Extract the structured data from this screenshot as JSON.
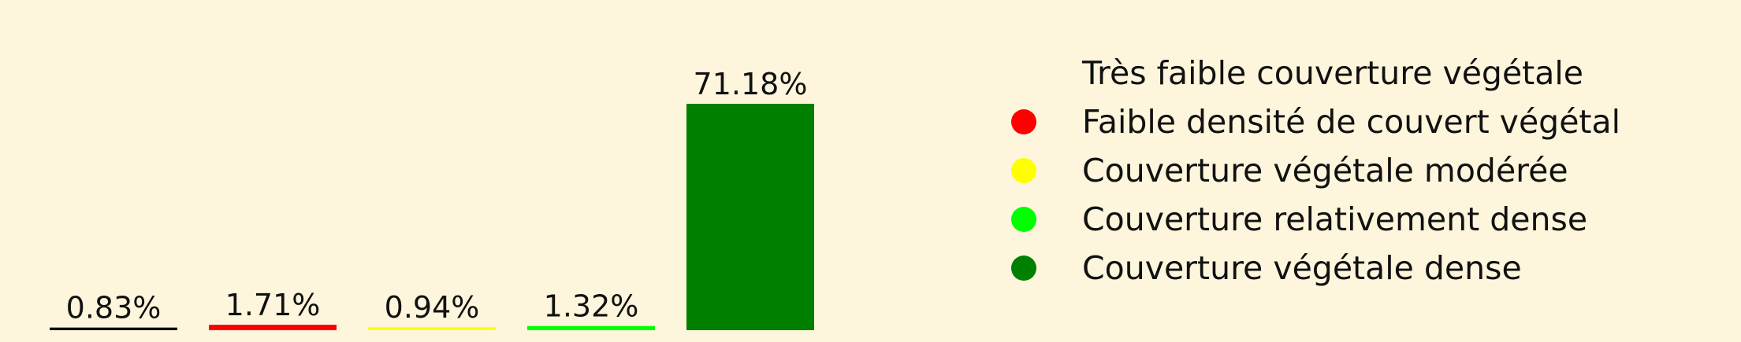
{
  "chart_data": {
    "type": "bar",
    "categories": [
      "Très faible couverture végétale",
      "Faible densité de couvert végétal",
      "Couverture végétale modérée",
      "Couverture relativement dense",
      "Couverture végétale dense"
    ],
    "values": [
      0.83,
      1.71,
      0.94,
      1.32,
      71.18
    ],
    "value_labels": [
      "0.83%",
      "1.71%",
      "0.94%",
      "1.32%",
      "71.18%"
    ],
    "colors": [
      "#000000",
      "#ff0000",
      "#ffff00",
      "#00ff00",
      "#008000"
    ],
    "legend_marker_colors": [
      "transparent",
      "#ff0000",
      "#ffff00",
      "#00ff00",
      "#008000"
    ],
    "ylim": [
      0,
      71.18
    ],
    "grid": false,
    "legend_position": "right",
    "background": "#fdf6dc"
  }
}
